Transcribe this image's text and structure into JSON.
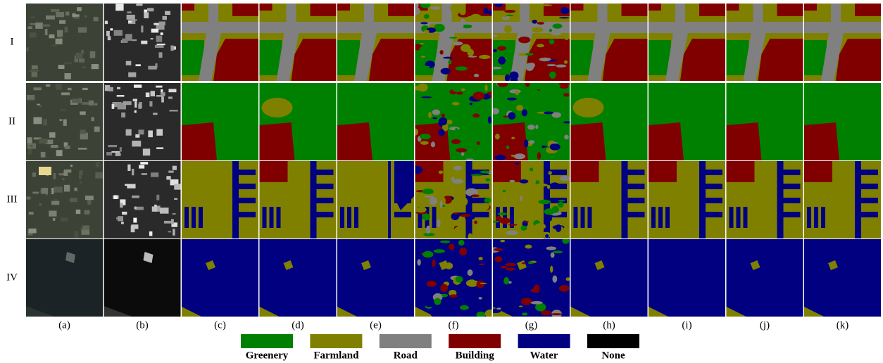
{
  "row_labels": [
    "I",
    "II",
    "III",
    "IV"
  ],
  "column_labels": [
    "(a)",
    "(b)",
    "(c)",
    "(d)",
    "(e)",
    "(f)",
    "(g)",
    "(h)",
    "(i)",
    "(j)",
    "(k)"
  ],
  "legend": [
    {
      "label": "Greenery",
      "color": "#008000"
    },
    {
      "label": "Farmland",
      "color": "#808000"
    },
    {
      "label": "Road",
      "color": "#808080"
    },
    {
      "label": "Building",
      "color": "#800000"
    },
    {
      "label": "Water",
      "color": "#000080"
    },
    {
      "label": "None",
      "color": "#000000"
    }
  ]
}
